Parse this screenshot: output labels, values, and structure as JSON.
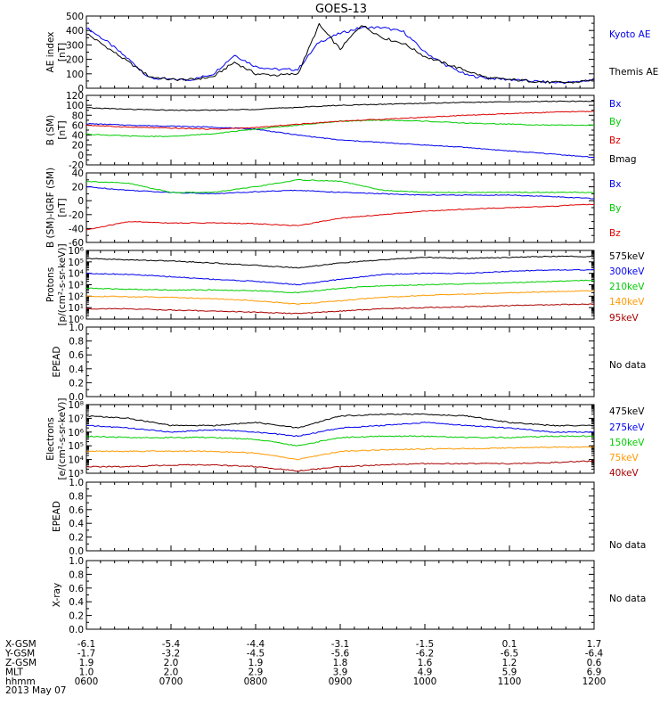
{
  "title": "GOES-13",
  "colors": {
    "black": "#000000",
    "blue": "#0000ee",
    "green": "#00cc00",
    "red": "#dd0000",
    "orange": "#ff9900",
    "darkred": "#aa0000"
  },
  "x_axis": {
    "hhmm": [
      "0600",
      "0700",
      "0800",
      "0900",
      "1000",
      "1100",
      "1200"
    ],
    "date": "2013 May 07",
    "rows": [
      {
        "label": "X-GSM",
        "values": [
          "-6.1",
          "-5.4",
          "-4.4",
          "-3.1",
          "-1.5",
          "0.1",
          "1.7"
        ]
      },
      {
        "label": "Y-GSM",
        "values": [
          "-1.7",
          "-3.2",
          "-4.5",
          "-5.6",
          "-6.2",
          "-6.5",
          "-6.4"
        ]
      },
      {
        "label": "Z-GSM",
        "values": [
          "1.9",
          "2.0",
          "1.9",
          "1.8",
          "1.6",
          "1.2",
          "0.6"
        ]
      },
      {
        "label": "MLT",
        "values": [
          "1.0",
          "2.0",
          "2.9",
          "3.9",
          "4.9",
          "5.9",
          "6.9"
        ]
      },
      {
        "label": "hhmm",
        "values": [
          "0600",
          "0700",
          "0800",
          "0900",
          "1000",
          "1100",
          "1200"
        ]
      }
    ]
  },
  "chart_data": [
    {
      "type": "line",
      "ylabel": [
        "AE index",
        "[nT]"
      ],
      "yscale": "linear",
      "ylim": [
        0,
        500
      ],
      "yticks": [
        "0",
        "100",
        "200",
        "300",
        "400",
        "500"
      ],
      "x": [
        "06:00",
        "06:15",
        "06:30",
        "06:45",
        "07:00",
        "07:15",
        "07:30",
        "07:45",
        "08:00",
        "08:15",
        "08:30",
        "08:45",
        "09:00",
        "09:15",
        "09:30",
        "09:45",
        "10:00",
        "10:15",
        "10:30",
        "10:45",
        "11:00",
        "11:15",
        "11:30",
        "11:45",
        "12:00"
      ],
      "series": [
        {
          "name": "Kyoto AE",
          "color": "#0000ee",
          "values": [
            420,
            320,
            200,
            70,
            60,
            60,
            100,
            230,
            150,
            130,
            130,
            320,
            380,
            420,
            420,
            390,
            250,
            160,
            90,
            70,
            60,
            50,
            40,
            40,
            60
          ]
        },
        {
          "name": "Themis AE",
          "color": "#000000",
          "values": [
            380,
            280,
            180,
            80,
            60,
            60,
            80,
            180,
            100,
            90,
            100,
            440,
            270,
            440,
            350,
            310,
            220,
            170,
            120,
            70,
            60,
            50,
            40,
            40,
            60
          ]
        }
      ]
    },
    {
      "type": "line",
      "ylabel": [
        "B (SM)",
        "[nT]"
      ],
      "yscale": "linear",
      "ylim": [
        -20,
        120
      ],
      "yticks": [
        "-20",
        "0",
        "20",
        "40",
        "60",
        "80",
        "100",
        "120"
      ],
      "x": [
        "06:00",
        "06:30",
        "07:00",
        "07:30",
        "08:00",
        "08:30",
        "09:00",
        "09:30",
        "10:00",
        "10:30",
        "11:00",
        "11:30",
        "12:00"
      ],
      "series": [
        {
          "name": "Bx",
          "color": "#0000ee",
          "values": [
            63,
            60,
            58,
            56,
            52,
            40,
            30,
            25,
            20,
            15,
            8,
            2,
            -5
          ]
        },
        {
          "name": "By",
          "color": "#00cc00",
          "values": [
            42,
            38,
            37,
            43,
            52,
            60,
            68,
            70,
            68,
            64,
            62,
            60,
            60
          ]
        },
        {
          "name": "Bz",
          "color": "#dd0000",
          "values": [
            60,
            56,
            54,
            52,
            55,
            62,
            68,
            72,
            76,
            80,
            83,
            86,
            88
          ]
        },
        {
          "name": "Bmag",
          "color": "#000000",
          "values": [
            95,
            92,
            90,
            90,
            92,
            96,
            100,
            102,
            104,
            106,
            107,
            108,
            108
          ]
        }
      ]
    },
    {
      "type": "line",
      "ylabel": [
        "B (SM)-IGRF (SM)",
        "[nT]"
      ],
      "yscale": "linear",
      "ylim": [
        -60,
        40
      ],
      "yticks": [
        "-60",
        "-40",
        "-20",
        "0",
        "20",
        "40"
      ],
      "x": [
        "06:00",
        "06:30",
        "07:00",
        "07:30",
        "08:00",
        "08:30",
        "09:00",
        "09:30",
        "10:00",
        "10:30",
        "11:00",
        "11:30",
        "12:00"
      ],
      "series": [
        {
          "name": "Bx",
          "color": "#0000ee",
          "values": [
            20,
            15,
            12,
            10,
            13,
            15,
            12,
            10,
            8,
            8,
            8,
            6,
            3
          ]
        },
        {
          "name": "By",
          "color": "#00cc00",
          "values": [
            28,
            25,
            12,
            12,
            20,
            30,
            28,
            15,
            12,
            12,
            12,
            12,
            12
          ]
        },
        {
          "name": "Bz",
          "color": "#dd0000",
          "values": [
            -42,
            -30,
            -32,
            -32,
            -33,
            -36,
            -25,
            -20,
            -15,
            -12,
            -10,
            -8,
            -5
          ]
        }
      ]
    },
    {
      "type": "line",
      "ylabel": [
        "Protons",
        "[p/(cm²-s-sr-keV)]"
      ],
      "yscale": "log",
      "ylim": [
        1,
        1000000
      ],
      "yticks": [
        "10⁰",
        "10¹",
        "10²",
        "10³",
        "10⁴",
        "10⁵",
        "10⁶"
      ],
      "x": [
        "06:00",
        "06:30",
        "07:00",
        "07:30",
        "08:00",
        "08:30",
        "09:00",
        "09:30",
        "10:00",
        "10:30",
        "11:00",
        "11:30",
        "12:00"
      ],
      "series": [
        {
          "name": "575keV",
          "color": "#000000",
          "values": [
            200000,
            150000,
            120000,
            80000,
            50000,
            30000,
            80000,
            150000,
            250000,
            200000,
            250000,
            300000,
            300000
          ]
        },
        {
          "name": "300keV",
          "color": "#0000ee",
          "values": [
            10000,
            8000,
            5000,
            3000,
            2000,
            1000,
            3000,
            8000,
            10000,
            10000,
            15000,
            20000,
            20000
          ]
        },
        {
          "name": "210keV",
          "color": "#00cc00",
          "values": [
            500,
            400,
            350,
            350,
            300,
            200,
            500,
            800,
            1000,
            1200,
            1500,
            2000,
            2500
          ]
        },
        {
          "name": "140keV",
          "color": "#ff9900",
          "values": [
            100,
            90,
            80,
            60,
            40,
            20,
            40,
            80,
            120,
            150,
            200,
            250,
            300
          ]
        },
        {
          "name": "95keV",
          "color": "#aa0000",
          "values": [
            8,
            8,
            6,
            5,
            4,
            3,
            5,
            8,
            10,
            12,
            15,
            18,
            20
          ]
        }
      ]
    },
    {
      "type": "line",
      "ylabel": [
        "EPEAD",
        ""
      ],
      "yscale": "linear",
      "ylim": [
        0,
        1
      ],
      "yticks": [
        "0.0",
        "0.2",
        "0.4",
        "0.6",
        "0.8",
        "1.0"
      ],
      "note": "No data",
      "series": []
    },
    {
      "type": "line",
      "ylabel": [
        "Electrons",
        "[e/(cm²-s-sr-keV)]"
      ],
      "yscale": "log",
      "ylim": [
        1000,
        100000000
      ],
      "yticks": [
        "10³",
        "10⁴",
        "10⁵",
        "10⁶",
        "10⁷",
        "10⁸"
      ],
      "x": [
        "06:00",
        "06:30",
        "07:00",
        "07:30",
        "08:00",
        "08:30",
        "09:00",
        "09:30",
        "10:00",
        "10:30",
        "11:00",
        "11:30",
        "12:00"
      ],
      "series": [
        {
          "name": "475keV",
          "color": "#000000",
          "values": [
            15000000,
            10000000,
            3000000,
            3000000,
            5000000,
            2000000,
            15000000,
            20000000,
            20000000,
            15000000,
            5000000,
            3000000,
            3000000
          ]
        },
        {
          "name": "275keV",
          "color": "#0000ee",
          "values": [
            3000000,
            2000000,
            1000000,
            1500000,
            1000000,
            500000,
            2000000,
            3000000,
            5000000,
            3000000,
            2000000,
            1000000,
            1000000
          ]
        },
        {
          "name": "150keV",
          "color": "#00cc00",
          "values": [
            500000,
            400000,
            400000,
            400000,
            300000,
            100000,
            400000,
            500000,
            500000,
            400000,
            400000,
            500000,
            500000
          ]
        },
        {
          "name": "75keV",
          "color": "#ff9900",
          "values": [
            40000,
            40000,
            40000,
            40000,
            30000,
            10000,
            40000,
            50000,
            60000,
            60000,
            70000,
            80000,
            80000
          ]
        },
        {
          "name": "40keV",
          "color": "#aa0000",
          "values": [
            3000,
            3000,
            4000,
            4000,
            3000,
            1500,
            3000,
            4000,
            5000,
            5000,
            5000,
            6000,
            8000
          ]
        }
      ]
    },
    {
      "type": "line",
      "ylabel": [
        "EPEAD",
        ""
      ],
      "yscale": "linear",
      "ylim": [
        0,
        1
      ],
      "yticks": [
        "0.0",
        "0.2",
        "0.4",
        "0.6",
        "0.8",
        "1.0"
      ],
      "note": "No data",
      "series": []
    },
    {
      "type": "line",
      "ylabel": [
        "X-ray",
        ""
      ],
      "yscale": "linear",
      "ylim": [
        0,
        1
      ],
      "yticks": [
        "0.0",
        "0.2",
        "0.4",
        "0.6",
        "0.8",
        "1.0"
      ],
      "note": "No data",
      "series": []
    }
  ]
}
